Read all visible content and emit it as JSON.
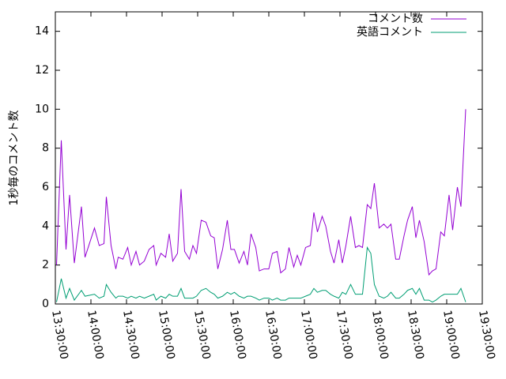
{
  "chart_data": {
    "type": "line",
    "ylabel": "1秒毎のコメント数",
    "x": [
      "13:31:00",
      "13:35:00",
      "13:39:00",
      "13:42:00",
      "13:46:00",
      "13:52:00",
      "13:55:00",
      "14:03:00",
      "14:07:00",
      "14:11:00",
      "14:13:00",
      "14:17:00",
      "14:21:00",
      "14:23:00",
      "14:27:00",
      "14:31:00",
      "14:34:00",
      "14:38:00",
      "14:41:00",
      "14:45:00",
      "14:49:00",
      "14:53:00",
      "14:55:00",
      "14:59:00",
      "15:03:00",
      "15:06:00",
      "15:09:00",
      "15:13:00",
      "15:16:00",
      "15:19:00",
      "15:23:00",
      "15:26:00",
      "15:29:00",
      "15:33:00",
      "15:37:00",
      "15:41:00",
      "15:44:00",
      "15:47:00",
      "15:51:00",
      "15:55:00",
      "15:58:00",
      "16:01:00",
      "16:05:00",
      "16:09:00",
      "16:12:00",
      "16:15:00",
      "16:19:00",
      "16:22:00",
      "16:26:00",
      "16:30:00",
      "16:33:00",
      "16:37:00",
      "16:40:00",
      "16:44:00",
      "16:47:00",
      "16:51:00",
      "16:54:00",
      "16:57:00",
      "17:01:00",
      "17:05:00",
      "17:08:00",
      "17:11:00",
      "17:15:00",
      "17:18:00",
      "17:22:00",
      "17:25:00",
      "17:29:00",
      "17:32:00",
      "17:35:00",
      "17:39:00",
      "17:43:00",
      "17:46:00",
      "17:49:00",
      "17:53:00",
      "17:56:00",
      "17:59:00",
      "18:03:00",
      "18:07:00",
      "18:10:00",
      "18:13:00",
      "18:17:00",
      "18:20:00",
      "18:24:00",
      "18:27:00",
      "18:31:00",
      "18:34:00",
      "18:37:00",
      "18:41:00",
      "18:45:00",
      "18:48:00",
      "18:51:00",
      "18:55:00",
      "18:58:00",
      "19:02:00",
      "19:05:00",
      "19:09:00",
      "19:12:00",
      "19:16:00"
    ],
    "series": [
      {
        "name": "コメント数",
        "color": "#9400d3",
        "values": [
          2.0,
          8.4,
          2.8,
          5.6,
          2.1,
          5.0,
          2.4,
          3.9,
          3.0,
          3.1,
          5.5,
          3.0,
          1.8,
          2.4,
          2.3,
          2.9,
          2.0,
          2.7,
          2.0,
          2.2,
          2.8,
          3.0,
          2.0,
          2.6,
          2.4,
          3.6,
          2.2,
          2.6,
          5.9,
          2.7,
          2.3,
          3.0,
          2.6,
          4.3,
          4.2,
          3.5,
          3.4,
          1.8,
          2.8,
          4.3,
          2.8,
          2.8,
          2.1,
          2.7,
          2.0,
          3.6,
          2.9,
          1.7,
          1.8,
          1.8,
          2.6,
          2.7,
          1.6,
          1.8,
          2.9,
          1.9,
          2.5,
          2.0,
          2.9,
          3.0,
          4.7,
          3.7,
          4.5,
          4.0,
          2.7,
          2.1,
          3.3,
          2.1,
          3.0,
          4.5,
          2.9,
          3.0,
          2.9,
          5.1,
          4.9,
          6.2,
          3.9,
          4.1,
          3.9,
          4.1,
          2.3,
          2.3,
          3.5,
          4.3,
          5.0,
          3.4,
          4.3,
          3.2,
          1.5,
          1.7,
          1.8,
          3.7,
          3.5,
          5.6,
          3.8,
          6.0,
          5.0,
          10.0
        ]
      },
      {
        "name": "英語コメント",
        "color": "#009e73",
        "values": [
          0.1,
          1.3,
          0.3,
          0.8,
          0.2,
          0.7,
          0.4,
          0.5,
          0.3,
          0.4,
          1.0,
          0.6,
          0.3,
          0.4,
          0.4,
          0.3,
          0.4,
          0.3,
          0.4,
          0.3,
          0.4,
          0.5,
          0.2,
          0.4,
          0.3,
          0.5,
          0.4,
          0.4,
          0.8,
          0.3,
          0.3,
          0.3,
          0.4,
          0.7,
          0.8,
          0.6,
          0.5,
          0.3,
          0.4,
          0.6,
          0.5,
          0.6,
          0.4,
          0.3,
          0.4,
          0.4,
          0.3,
          0.2,
          0.3,
          0.3,
          0.2,
          0.3,
          0.2,
          0.2,
          0.3,
          0.3,
          0.3,
          0.3,
          0.4,
          0.5,
          0.8,
          0.6,
          0.7,
          0.7,
          0.5,
          0.4,
          0.3,
          0.6,
          0.5,
          1.0,
          0.5,
          0.5,
          0.5,
          2.9,
          2.6,
          1.0,
          0.4,
          0.3,
          0.4,
          0.6,
          0.3,
          0.3,
          0.5,
          0.7,
          0.8,
          0.5,
          0.8,
          0.2,
          0.2,
          0.1,
          0.2,
          0.4,
          0.5,
          0.5,
          0.5,
          0.5,
          0.8,
          0.1
        ]
      }
    ],
    "xlim": [
      "13:30:00",
      "19:30:00"
    ],
    "xticks": [
      "13:30:00",
      "14:00:00",
      "14:30:00",
      "15:00:00",
      "15:30:00",
      "16:00:00",
      "16:30:00",
      "17:00:00",
      "17:30:00",
      "18:00:00",
      "18:30:00",
      "19:00:00",
      "19:30:00"
    ],
    "ylim": [
      0,
      15
    ],
    "yticks": [
      0,
      2,
      4,
      6,
      8,
      10,
      12,
      14
    ],
    "grid": false,
    "legend": "top-right"
  }
}
